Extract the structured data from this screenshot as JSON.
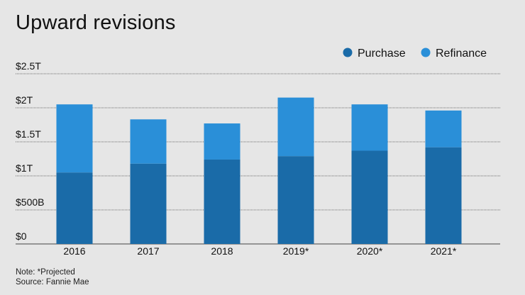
{
  "chart_data": {
    "type": "bar",
    "stacked": true,
    "title": "Upward revisions",
    "categories": [
      "2016",
      "2017",
      "2018",
      "2019*",
      "2020*",
      "2021*"
    ],
    "series": [
      {
        "name": "Purchase",
        "color": "#1a6ba8",
        "values": [
          1.05,
          1.18,
          1.24,
          1.29,
          1.37,
          1.42
        ]
      },
      {
        "name": "Refinance",
        "color": "#2a8fd8",
        "values": [
          1.0,
          0.65,
          0.53,
          0.86,
          0.68,
          0.54
        ]
      }
    ],
    "ylim": [
      0,
      2.5
    ],
    "yticks": [
      0,
      0.5,
      1,
      1.5,
      2,
      2.5
    ],
    "ytick_labels": [
      "$0",
      "$500B",
      "$1T",
      "$1.5T",
      "$2T",
      "$2.5T"
    ],
    "xlabel": "",
    "ylabel": "",
    "legend_position": "top-right",
    "grid": true
  },
  "footnotes": {
    "note": "Note: *Projected",
    "source": "Source: Fannie Mae"
  },
  "colors": {
    "background": "#e6e6e6",
    "gridline": "#444444"
  }
}
